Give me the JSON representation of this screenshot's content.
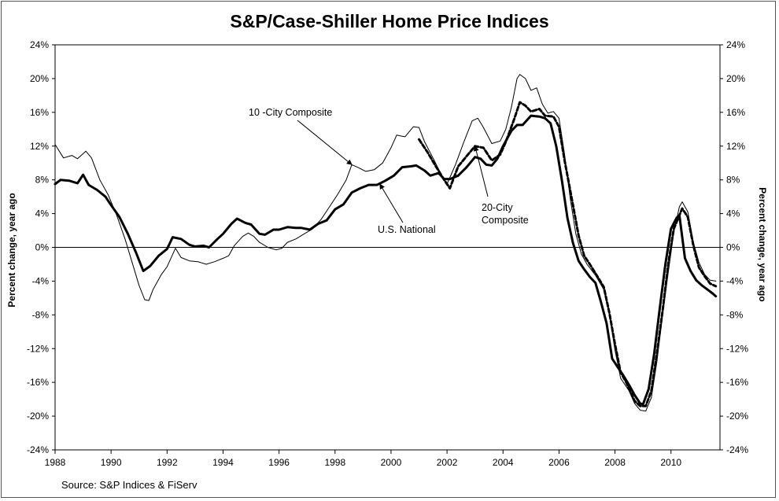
{
  "chart_data": {
    "type": "line",
    "title": "S&P/Case-Shiller Home Price Indices",
    "ylabel": "Percent change, year ago",
    "ylabel_right": "Percent change, year ago",
    "xlabel": "",
    "source": "Source: S&P Indices & FiServ",
    "xlim": [
      1988,
      2011.75
    ],
    "ylim": [
      -24,
      24
    ],
    "x_ticks": [
      1988,
      1990,
      1992,
      1994,
      1996,
      1998,
      2000,
      2002,
      2004,
      2006,
      2008,
      2010
    ],
    "x_tick_labels": [
      "1988",
      "1990",
      "1992",
      "1994",
      "1996",
      "1998",
      "2000",
      "2002",
      "2004",
      "2006",
      "2008",
      "2010"
    ],
    "y_ticks": [
      24,
      20,
      16,
      12,
      8,
      4,
      0,
      -4,
      -8,
      -12,
      -16,
      -20,
      -24
    ],
    "y_tick_labels": [
      "24%",
      "20%",
      "16%",
      "12%",
      "8%",
      "4%",
      "0%",
      "-4%",
      "-8%",
      "-12%",
      "-16%",
      "-20%",
      "-24%"
    ],
    "zero_line": true,
    "grid": false,
    "legend": "none",
    "series": [
      {
        "name": "10 -City Composite",
        "style": "thin",
        "color": "#000000",
        "points": [
          [
            1988.0,
            12.2
          ],
          [
            1988.3,
            10.6
          ],
          [
            1988.6,
            10.9
          ],
          [
            1988.8,
            10.5
          ],
          [
            1989.1,
            11.4
          ],
          [
            1989.3,
            10.6
          ],
          [
            1989.6,
            8.0
          ],
          [
            1989.9,
            6.2
          ],
          [
            1990.2,
            3.8
          ],
          [
            1990.5,
            1.0
          ],
          [
            1990.8,
            -2.3
          ],
          [
            1991.0,
            -4.5
          ],
          [
            1991.2,
            -6.2
          ],
          [
            1991.35,
            -6.3
          ],
          [
            1991.5,
            -5.0
          ],
          [
            1991.8,
            -3.2
          ],
          [
            1992.0,
            -2.3
          ],
          [
            1992.3,
            -0.1
          ],
          [
            1992.5,
            -1.2
          ],
          [
            1992.8,
            -1.6
          ],
          [
            1993.1,
            -1.7
          ],
          [
            1993.4,
            -2.0
          ],
          [
            1993.7,
            -1.7
          ],
          [
            1994.0,
            -1.3
          ],
          [
            1994.2,
            -1.0
          ],
          [
            1994.4,
            0.2
          ],
          [
            1994.7,
            1.3
          ],
          [
            1994.9,
            1.7
          ],
          [
            1995.1,
            1.3
          ],
          [
            1995.3,
            0.6
          ],
          [
            1995.6,
            0.0
          ],
          [
            1995.9,
            -0.3
          ],
          [
            1996.1,
            -0.1
          ],
          [
            1996.3,
            0.6
          ],
          [
            1996.6,
            1.0
          ],
          [
            1996.9,
            1.6
          ],
          [
            1997.2,
            2.2
          ],
          [
            1997.5,
            3.3
          ],
          [
            1997.8,
            4.8
          ],
          [
            1998.1,
            6.3
          ],
          [
            1998.4,
            8.0
          ],
          [
            1998.6,
            9.8
          ],
          [
            1998.8,
            9.5
          ],
          [
            1999.1,
            9.0
          ],
          [
            1999.4,
            9.2
          ],
          [
            1999.7,
            10.0
          ],
          [
            2000.0,
            11.8
          ],
          [
            2000.2,
            13.3
          ],
          [
            2000.5,
            13.1
          ],
          [
            2000.8,
            14.3
          ],
          [
            2001.0,
            14.2
          ],
          [
            2001.2,
            12.5
          ],
          [
            2001.5,
            10.6
          ],
          [
            2001.8,
            8.6
          ],
          [
            2002.0,
            7.5
          ],
          [
            2002.3,
            9.8
          ],
          [
            2002.6,
            12.5
          ],
          [
            2002.9,
            15.0
          ],
          [
            2003.1,
            15.3
          ],
          [
            2003.3,
            14.2
          ],
          [
            2003.6,
            12.3
          ],
          [
            2003.9,
            12.6
          ],
          [
            2004.1,
            14.0
          ],
          [
            2004.3,
            16.6
          ],
          [
            2004.5,
            20.0
          ],
          [
            2004.6,
            20.5
          ],
          [
            2004.8,
            20.0
          ],
          [
            2005.0,
            18.6
          ],
          [
            2005.2,
            18.9
          ],
          [
            2005.4,
            17.0
          ],
          [
            2005.6,
            15.9
          ],
          [
            2005.8,
            16.1
          ],
          [
            2006.0,
            15.3
          ],
          [
            2006.2,
            11.0
          ],
          [
            2006.4,
            5.8
          ],
          [
            2006.6,
            1.6
          ],
          [
            2006.8,
            -0.8
          ],
          [
            2007.0,
            -2.0
          ],
          [
            2007.3,
            -3.3
          ],
          [
            2007.6,
            -5.0
          ],
          [
            2007.8,
            -8.0
          ],
          [
            2008.0,
            -12.2
          ],
          [
            2008.2,
            -15.5
          ],
          [
            2008.5,
            -17.0
          ],
          [
            2008.7,
            -18.5
          ],
          [
            2008.9,
            -19.3
          ],
          [
            2009.1,
            -19.4
          ],
          [
            2009.3,
            -17.8
          ],
          [
            2009.5,
            -13.5
          ],
          [
            2009.7,
            -8.0
          ],
          [
            2009.9,
            -3.0
          ],
          [
            2010.1,
            1.8
          ],
          [
            2010.3,
            4.8
          ],
          [
            2010.4,
            5.4
          ],
          [
            2010.6,
            4.2
          ],
          [
            2010.8,
            0.6
          ],
          [
            2011.0,
            -1.8
          ],
          [
            2011.2,
            -3.2
          ],
          [
            2011.4,
            -3.9
          ],
          [
            2011.6,
            -4.0
          ]
        ]
      },
      {
        "name": "20-City Composite",
        "style": "dashed",
        "color": "#000000",
        "points": [
          [
            2001.0,
            12.8
          ],
          [
            2001.3,
            11.3
          ],
          [
            2001.6,
            9.6
          ],
          [
            2001.9,
            8.0
          ],
          [
            2002.1,
            7.0
          ],
          [
            2002.4,
            9.6
          ],
          [
            2002.7,
            10.8
          ],
          [
            2003.0,
            12.0
          ],
          [
            2003.3,
            11.8
          ],
          [
            2003.6,
            10.3
          ],
          [
            2003.9,
            11.0
          ],
          [
            2004.1,
            12.5
          ],
          [
            2004.4,
            15.2
          ],
          [
            2004.6,
            17.2
          ],
          [
            2004.8,
            16.8
          ],
          [
            2005.0,
            16.1
          ],
          [
            2005.3,
            16.4
          ],
          [
            2005.5,
            15.6
          ],
          [
            2005.8,
            15.5
          ],
          [
            2006.0,
            14.3
          ],
          [
            2006.2,
            10.3
          ],
          [
            2006.5,
            5.0
          ],
          [
            2006.7,
            1.4
          ],
          [
            2006.9,
            -1.0
          ],
          [
            2007.1,
            -2.0
          ],
          [
            2007.4,
            -3.6
          ],
          [
            2007.6,
            -4.7
          ],
          [
            2007.8,
            -7.8
          ],
          [
            2008.0,
            -11.5
          ],
          [
            2008.2,
            -14.8
          ],
          [
            2008.4,
            -16.0
          ],
          [
            2008.7,
            -18.2
          ],
          [
            2008.9,
            -18.8
          ],
          [
            2009.1,
            -18.8
          ],
          [
            2009.3,
            -17.0
          ],
          [
            2009.5,
            -12.5
          ],
          [
            2009.7,
            -7.5
          ],
          [
            2009.9,
            -2.0
          ],
          [
            2010.1,
            2.2
          ],
          [
            2010.4,
            4.6
          ],
          [
            2010.6,
            3.6
          ],
          [
            2010.8,
            0.2
          ],
          [
            2011.0,
            -2.4
          ],
          [
            2011.2,
            -3.4
          ],
          [
            2011.4,
            -4.3
          ],
          [
            2011.6,
            -4.6
          ]
        ]
      },
      {
        "name": "U.S. National",
        "style": "thick",
        "color": "#000000",
        "points": [
          [
            1988.0,
            7.5
          ],
          [
            1988.2,
            8.0
          ],
          [
            1988.5,
            7.9
          ],
          [
            1988.8,
            7.6
          ],
          [
            1989.0,
            8.6
          ],
          [
            1989.2,
            7.4
          ],
          [
            1989.5,
            6.8
          ],
          [
            1989.8,
            6.0
          ],
          [
            1990.0,
            5.0
          ],
          [
            1990.3,
            3.6
          ],
          [
            1990.6,
            1.6
          ],
          [
            1990.9,
            -0.7
          ],
          [
            1991.15,
            -2.8
          ],
          [
            1991.4,
            -2.2
          ],
          [
            1991.7,
            -1.0
          ],
          [
            1992.0,
            -0.2
          ],
          [
            1992.2,
            1.2
          ],
          [
            1992.5,
            1.0
          ],
          [
            1992.8,
            0.3
          ],
          [
            1993.0,
            0.1
          ],
          [
            1993.3,
            0.2
          ],
          [
            1993.5,
            0.0
          ],
          [
            1993.8,
            1.0
          ],
          [
            1994.0,
            1.6
          ],
          [
            1994.3,
            2.8
          ],
          [
            1994.5,
            3.4
          ],
          [
            1994.8,
            2.9
          ],
          [
            1995.0,
            2.7
          ],
          [
            1995.3,
            1.6
          ],
          [
            1995.5,
            1.5
          ],
          [
            1995.8,
            2.1
          ],
          [
            1996.0,
            2.1
          ],
          [
            1996.3,
            2.4
          ],
          [
            1996.6,
            2.3
          ],
          [
            1996.8,
            2.3
          ],
          [
            1997.1,
            2.1
          ],
          [
            1997.4,
            2.8
          ],
          [
            1997.7,
            3.2
          ],
          [
            1998.0,
            4.5
          ],
          [
            1998.3,
            5.1
          ],
          [
            1998.6,
            6.5
          ],
          [
            1998.9,
            7.0
          ],
          [
            1999.2,
            7.4
          ],
          [
            1999.5,
            7.4
          ],
          [
            1999.8,
            7.9
          ],
          [
            2000.1,
            8.5
          ],
          [
            2000.4,
            9.5
          ],
          [
            2000.7,
            9.6
          ],
          [
            2000.9,
            9.7
          ],
          [
            2001.2,
            9.1
          ],
          [
            2001.4,
            8.5
          ],
          [
            2001.7,
            8.8
          ],
          [
            2001.9,
            8.1
          ],
          [
            2002.1,
            8.1
          ],
          [
            2002.4,
            8.5
          ],
          [
            2002.7,
            9.5
          ],
          [
            2003.0,
            10.7
          ],
          [
            2003.2,
            10.5
          ],
          [
            2003.4,
            9.8
          ],
          [
            2003.6,
            9.7
          ],
          [
            2003.8,
            10.5
          ],
          [
            2004.0,
            12.0
          ],
          [
            2004.3,
            13.8
          ],
          [
            2004.5,
            14.5
          ],
          [
            2004.7,
            14.5
          ],
          [
            2005.0,
            15.6
          ],
          [
            2005.3,
            15.5
          ],
          [
            2005.5,
            15.3
          ],
          [
            2005.7,
            14.7
          ],
          [
            2005.9,
            12.0
          ],
          [
            2006.1,
            8.0
          ],
          [
            2006.3,
            3.5
          ],
          [
            2006.5,
            0.5
          ],
          [
            2006.7,
            -1.6
          ],
          [
            2006.9,
            -2.6
          ],
          [
            2007.1,
            -3.5
          ],
          [
            2007.3,
            -4.2
          ],
          [
            2007.5,
            -6.5
          ],
          [
            2007.7,
            -9.0
          ],
          [
            2007.9,
            -13.2
          ],
          [
            2008.1,
            -14.2
          ],
          [
            2008.3,
            -15.2
          ],
          [
            2008.5,
            -16.3
          ],
          [
            2008.7,
            -17.5
          ],
          [
            2008.9,
            -18.5
          ],
          [
            2009.0,
            -18.6
          ],
          [
            2009.2,
            -16.8
          ],
          [
            2009.4,
            -12.6
          ],
          [
            2009.6,
            -7.2
          ],
          [
            2009.8,
            -2.0
          ],
          [
            2010.0,
            2.2
          ],
          [
            2010.2,
            3.5
          ],
          [
            2010.3,
            3.8
          ],
          [
            2010.5,
            -1.3
          ],
          [
            2010.7,
            -2.8
          ],
          [
            2010.9,
            -3.9
          ],
          [
            2011.1,
            -4.5
          ],
          [
            2011.3,
            -5.0
          ],
          [
            2011.5,
            -5.5
          ],
          [
            2011.6,
            -5.8
          ]
        ]
      }
    ],
    "annotations": [
      {
        "text": "10 -City Composite",
        "target": [
          1998.6,
          9.8
        ]
      },
      {
        "text": "U.S. National",
        "target": [
          1999.6,
          7.5
        ]
      },
      {
        "lines": [
          "20-City",
          "Composite"
        ],
        "target": [
          2003.0,
          12.0
        ]
      }
    ]
  }
}
